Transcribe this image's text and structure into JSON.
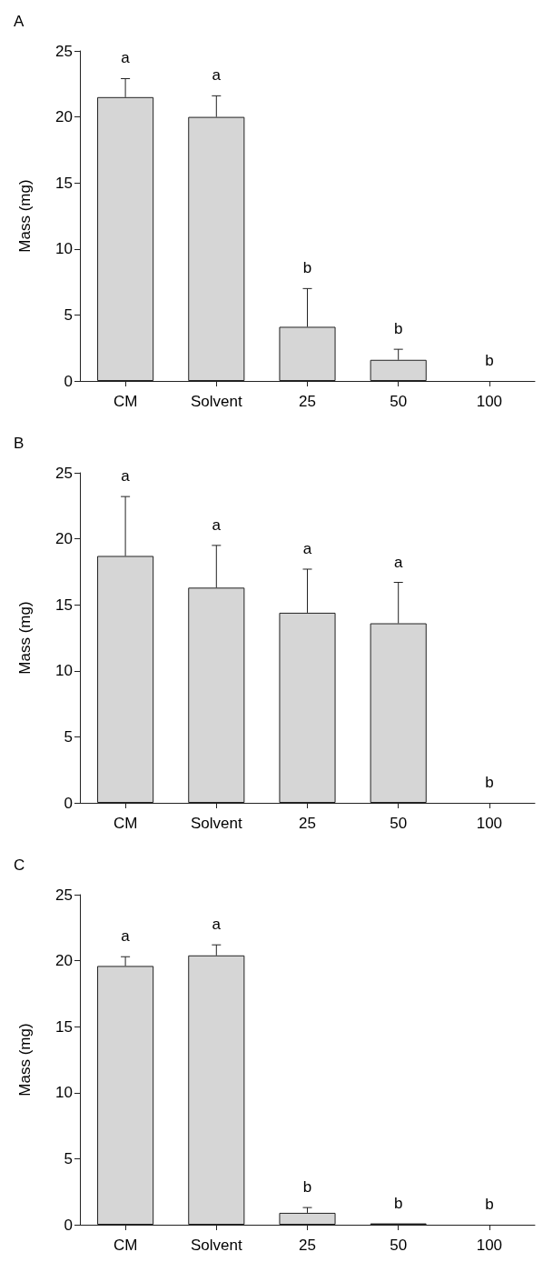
{
  "chart_data": [
    {
      "type": "bar",
      "title": "A",
      "ylabel": "Mass (mg)",
      "categories": [
        "CM",
        "Solvent",
        "25",
        "50",
        "100"
      ],
      "values": [
        21.5,
        20.0,
        4.1,
        1.6,
        0
      ],
      "color": "#d6d6d6",
      "errors": [
        [
          21.5,
          22.9
        ],
        [
          20.0,
          21.6
        ],
        [
          4.1,
          7.0
        ],
        [
          1.6,
          2.4
        ],
        null
      ],
      "ylim": [
        0,
        25
      ],
      "yticks": [
        0,
        5,
        10,
        15,
        20,
        25
      ],
      "grid": false,
      "annotations": [
        "a",
        "a",
        "b",
        "b",
        "b"
      ]
    },
    {
      "type": "bar",
      "title": "B",
      "ylabel": "Mass (mg)",
      "categories": [
        "CM",
        "Solvent",
        "25",
        "50",
        "100"
      ],
      "values": [
        18.7,
        16.3,
        14.4,
        13.6,
        0
      ],
      "color": "#d6d6d6",
      "errors": [
        [
          18.7,
          23.2
        ],
        [
          16.3,
          19.5
        ],
        [
          14.4,
          17.7
        ],
        [
          13.6,
          16.7
        ],
        null
      ],
      "ylim": [
        0,
        25
      ],
      "yticks": [
        0,
        5,
        10,
        15,
        20,
        25
      ],
      "grid": false,
      "annotations": [
        "a",
        "a",
        "a",
        "a",
        "b"
      ]
    },
    {
      "type": "bar",
      "title": "C",
      "ylabel": "Mass (mg)",
      "categories": [
        "CM",
        "Solvent",
        "25",
        "50",
        "100"
      ],
      "values": [
        19.6,
        20.4,
        0.9,
        0.1,
        0
      ],
      "color": "#d6d6d6",
      "errors": [
        [
          19.6,
          20.3
        ],
        [
          20.4,
          21.2
        ],
        [
          0.9,
          1.3
        ],
        null,
        null
      ],
      "ylim": [
        0,
        25
      ],
      "yticks": [
        0,
        5,
        10,
        15,
        20,
        25
      ],
      "grid": false,
      "annotations": [
        "a",
        "a",
        "b",
        "b",
        "b"
      ]
    }
  ]
}
